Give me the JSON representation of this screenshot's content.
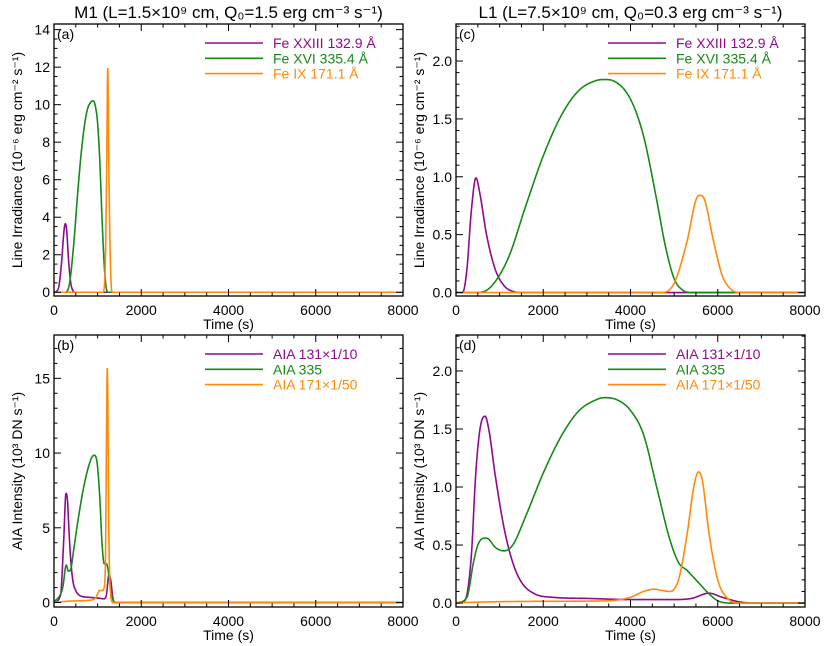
{
  "colors": {
    "purple": "#8e0a8e",
    "green": "#168a16",
    "orange": "#ff8a0a"
  },
  "chart_data": [
    {
      "type": "line",
      "panel_label": "(a)",
      "title": "M1 (L=1.5×10⁹ cm, Q₀=1.5 erg cm⁻³ s⁻¹)",
      "xlabel": "Time (s)",
      "ylabel": "Line Irradiance (10⁻⁶ erg cm⁻² s⁻¹)",
      "xlim": [
        0,
        8000
      ],
      "ylim": [
        -0.2,
        14.3
      ],
      "xticks": [
        0,
        2000,
        4000,
        6000,
        8000
      ],
      "yticks": [
        0,
        2,
        4,
        6,
        8,
        10,
        12,
        14
      ],
      "ytick_labels": [
        "0",
        "2",
        "4",
        "6",
        "8",
        "10",
        "12",
        "14"
      ],
      "x_minor": 500,
      "y_minor": 0.5,
      "legend_placement": "top-right",
      "series": [
        {
          "name": "Fe XXIII 132.9 Å",
          "color": "purple",
          "x": [
            0,
            100,
            170,
            230,
            260,
            290,
            340,
            400,
            500,
            8000
          ],
          "y": [
            0,
            0.2,
            1.5,
            3.3,
            3.65,
            3.3,
            1.5,
            0.3,
            0,
            0
          ]
        },
        {
          "name": "Fe XVI 335.4 Å",
          "color": "green",
          "x": [
            0,
            250,
            350,
            450,
            550,
            650,
            750,
            850,
            900,
            950,
            1000,
            1050,
            1100,
            1150,
            1200,
            1250,
            8000
          ],
          "y": [
            0,
            0,
            0.4,
            2.5,
            5.5,
            8,
            9.6,
            10.15,
            10.2,
            9.9,
            9,
            7,
            4,
            1.5,
            0.2,
            0,
            0
          ]
        },
        {
          "name": "Fe IX 171.1 Å",
          "color": "orange",
          "x": [
            0,
            1120,
            1170,
            1205,
            1232,
            1260,
            1300,
            1340,
            8000
          ],
          "y": [
            0,
            0,
            1,
            6,
            11.95,
            6,
            1,
            0,
            0
          ]
        }
      ]
    },
    {
      "type": "line",
      "panel_label": "(b)",
      "title": "",
      "xlabel": "Time (s)",
      "ylabel": "AIA Intensity (10³ DN s⁻¹)",
      "xlim": [
        0,
        8000
      ],
      "ylim": [
        -0.3,
        17.9
      ],
      "xticks": [
        0,
        2000,
        4000,
        6000,
        8000
      ],
      "yticks": [
        0,
        5,
        10,
        15
      ],
      "ytick_labels": [
        "0",
        "5",
        "10",
        "15"
      ],
      "x_minor": 500,
      "y_minor": 1,
      "legend_placement": "top-right",
      "series": [
        {
          "name": "AIA 131×1/10",
          "color": "purple",
          "x": [
            0,
            150,
            220,
            275,
            310,
            340,
            380,
            430,
            500,
            600,
            800,
            1000,
            1150,
            1200,
            1260,
            1300,
            1350,
            1400,
            8000
          ],
          "y": [
            0,
            0.5,
            4,
            7.3,
            6.8,
            5,
            3,
            1.5,
            0.8,
            0.45,
            0.35,
            0.3,
            0.25,
            0.5,
            1.85,
            1.5,
            0.3,
            0,
            0
          ]
        },
        {
          "name": "AIA 335",
          "color": "green",
          "x": [
            0,
            200,
            280,
            330,
            380,
            450,
            550,
            700,
            850,
            920,
            980,
            1050,
            1100,
            1150,
            1200,
            1250,
            1300,
            1400,
            8000
          ],
          "y": [
            0,
            1,
            2.5,
            2.1,
            2.2,
            3.5,
            5.5,
            8,
            9.6,
            9.85,
            9.5,
            7,
            4,
            2.6,
            2.6,
            2,
            0.8,
            0,
            0
          ]
        },
        {
          "name": "AIA 171×1/50",
          "color": "orange",
          "x": [
            0,
            400,
            800,
            950,
            1050,
            1100,
            1150,
            1180,
            1222,
            1260,
            1300,
            1350,
            8000
          ],
          "y": [
            0,
            0.1,
            0.15,
            0.3,
            0.8,
            0.8,
            1.0,
            3,
            15.7,
            4,
            0.5,
            0,
            0
          ]
        }
      ]
    },
    {
      "type": "line",
      "panel_label": "(c)",
      "title": "L1 (L=7.5×10⁹ cm, Q₀=0.3 erg cm⁻³ s⁻¹)",
      "xlabel": "Time (s)",
      "ylabel": "Line Irradiance (10⁻⁶ erg cm⁻² s⁻¹)",
      "xlim": [
        0,
        8000
      ],
      "ylim": [
        -0.03,
        2.32
      ],
      "xticks": [
        0,
        2000,
        4000,
        6000,
        8000
      ],
      "yticks": [
        0,
        0.5,
        1.0,
        1.5,
        2.0
      ],
      "ytick_labels": [
        "0.0",
        "0.5",
        "1.0",
        "1.5",
        "2.0"
      ],
      "x_minor": 500,
      "y_minor": 0.1,
      "legend_placement": "top-right",
      "series": [
        {
          "name": "Fe XXIII 132.9 Å",
          "color": "purple",
          "x": [
            0,
            150,
            250,
            350,
            458,
            550,
            700,
            900,
            1100,
            1300,
            1500,
            8000
          ],
          "y": [
            0,
            0,
            0.2,
            0.7,
            0.99,
            0.85,
            0.5,
            0.2,
            0.06,
            0.01,
            0,
            0
          ]
        },
        {
          "name": "Fe XVI 335.4 Å",
          "color": "green",
          "x": [
            0,
            500,
            800,
            1200,
            1600,
            2000,
            2400,
            2800,
            3200,
            3415,
            3600,
            4000,
            4300,
            4600,
            4800,
            5000,
            5200,
            5400,
            8000
          ],
          "y": [
            0,
            0,
            0.05,
            0.3,
            0.75,
            1.18,
            1.52,
            1.74,
            1.83,
            1.84,
            1.83,
            1.67,
            1.35,
            0.8,
            0.4,
            0.12,
            0.02,
            0,
            0
          ]
        },
        {
          "name": "Fe IX 171.1 Å",
          "color": "orange",
          "x": [
            0,
            4700,
            5000,
            5300,
            5500,
            5593,
            5700,
            5900,
            6100,
            6300,
            6500,
            8000
          ],
          "y": [
            0,
            0,
            0.08,
            0.45,
            0.8,
            0.84,
            0.8,
            0.45,
            0.15,
            0.03,
            0,
            0
          ]
        }
      ]
    },
    {
      "type": "line",
      "panel_label": "(d)",
      "title": "",
      "xlabel": "Time (s)",
      "ylabel": "AIA Intensity (10³ DN s⁻¹)",
      "xlim": [
        0,
        8000
      ],
      "ylim": [
        -0.034,
        2.31
      ],
      "xticks": [
        0,
        2000,
        4000,
        6000,
        8000
      ],
      "yticks": [
        0,
        0.5,
        1.0,
        1.5,
        2.0
      ],
      "ytick_labels": [
        "0.0",
        "0.5",
        "1.0",
        "1.5",
        "2.0"
      ],
      "x_minor": 500,
      "y_minor": 0.1,
      "legend_placement": "top-right",
      "series": [
        {
          "name": "AIA 131×1/10",
          "color": "purple",
          "x": [
            0,
            200,
            350,
            450,
            550,
            665,
            750,
            900,
            1100,
            1300,
            1500,
            1800,
            2200,
            3000,
            4000,
            5000,
            5400,
            5800,
            6100,
            6500,
            7000,
            8000
          ],
          "y": [
            0,
            0.02,
            0.4,
            1.1,
            1.5,
            1.61,
            1.5,
            1.1,
            0.65,
            0.35,
            0.18,
            0.08,
            0.05,
            0.04,
            0.03,
            0.03,
            0.04,
            0.085,
            0.05,
            0.01,
            0,
            0
          ]
        },
        {
          "name": "AIA 335",
          "color": "green",
          "x": [
            0,
            250,
            400,
            500,
            650,
            750,
            900,
            1100,
            1300,
            1600,
            2000,
            2400,
            2800,
            3200,
            3400,
            3700,
            4000,
            4300,
            4600,
            4900,
            5100,
            5300,
            5500,
            5800,
            6000,
            6300,
            8000
          ],
          "y": [
            0,
            0.05,
            0.35,
            0.5,
            0.56,
            0.55,
            0.48,
            0.45,
            0.5,
            0.75,
            1.12,
            1.43,
            1.65,
            1.75,
            1.77,
            1.75,
            1.66,
            1.45,
            1.0,
            0.55,
            0.35,
            0.28,
            0.2,
            0.08,
            0.02,
            0,
            0
          ]
        },
        {
          "name": "AIA 171×1/50",
          "color": "orange",
          "x": [
            0,
            250,
            2000,
            3500,
            4000,
            4300,
            4550,
            4700,
            4900,
            5100,
            5300,
            5450,
            5560,
            5650,
            5800,
            6000,
            6200,
            6500,
            8000
          ],
          "y": [
            0,
            0.005,
            0.015,
            0.02,
            0.05,
            0.1,
            0.12,
            0.11,
            0.1,
            0.2,
            0.6,
            1.0,
            1.13,
            1.05,
            0.6,
            0.2,
            0.05,
            0,
            0
          ]
        }
      ]
    }
  ]
}
